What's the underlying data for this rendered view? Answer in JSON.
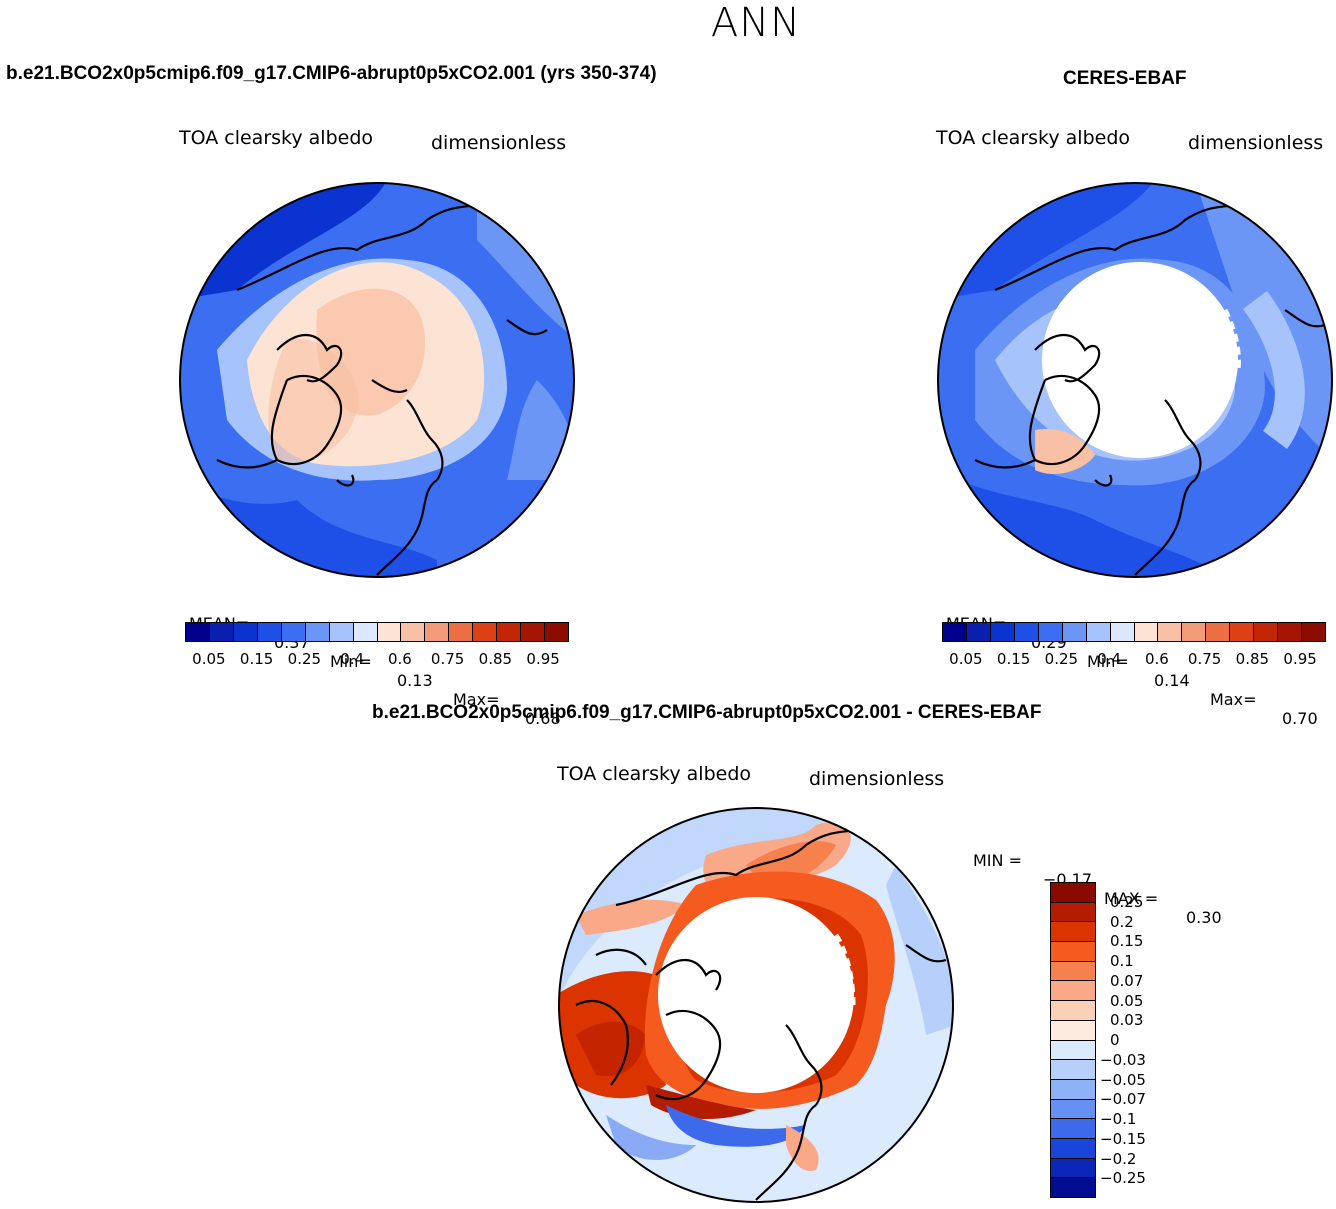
{
  "season": "ANN",
  "left_panel": {
    "title": "b.e21.BCO2x0p5cmip6.f09_g17.CMIP6-abrupt0p5xCO2.001 (yrs 350-374)",
    "variable": "TOA clearsky albedo",
    "units": "dimensionless",
    "stats": {
      "mean_label": "MEAN=",
      "mean": "0.37",
      "min_label": "Min=",
      "min": "0.13",
      "max_label": "Max=",
      "max": "0.68"
    }
  },
  "right_panel": {
    "title": "CERES-EBAF",
    "variable": "TOA clearsky albedo",
    "units": "dimensionless",
    "stats": {
      "mean_label": "MEAN=",
      "mean": "0.29",
      "min_label": "Min=",
      "min": "0.14",
      "max_label": "Max=",
      "max": "0.70"
    }
  },
  "diff_panel": {
    "title": "b.e21.BCO2x0p5cmip6.f09_g17.CMIP6-abrupt0p5xCO2.001 - CERES-EBAF",
    "variable": "TOA clearsky albedo",
    "units": "dimensionless",
    "stats": {
      "min_label": "MIN =",
      "min": "−0.17",
      "max_label": "MAX =",
      "max": "0.30"
    }
  },
  "abs_colorbar": {
    "colors": [
      "#00008b",
      "#0a1fb0",
      "#0b33cf",
      "#1e4fe6",
      "#3b6ef0",
      "#6b96f5",
      "#a6c3fb",
      "#dbe8fd",
      "#fde3d4",
      "#f8c0a4",
      "#f39b78",
      "#ec6e45",
      "#dd4014",
      "#c32607",
      "#a41504",
      "#8a0d00"
    ],
    "tick_labels": [
      "0.05",
      "0.15",
      "0.25",
      "0.4",
      "0.6",
      "0.75",
      "0.85",
      "0.95"
    ]
  },
  "diff_colorbar": {
    "colors": [
      "#8b0a00",
      "#b41c00",
      "#dc3400",
      "#f55a1e",
      "#f7804f",
      "#f9a888",
      "#fbd0b9",
      "#fdebe0",
      "#dbeafd",
      "#b6d0fb",
      "#8fb2f7",
      "#6690f1",
      "#3d6aeb",
      "#1a45db",
      "#0a27b8",
      "#000d8e"
    ],
    "tick_labels": [
      "0.25",
      "0.2",
      "0.15",
      "0.1",
      "0.07",
      "0.05",
      "0.03",
      "0",
      "−0.03",
      "−0.05",
      "−0.07",
      "−0.1",
      "−0.15",
      "−0.2",
      "−0.25"
    ]
  }
}
